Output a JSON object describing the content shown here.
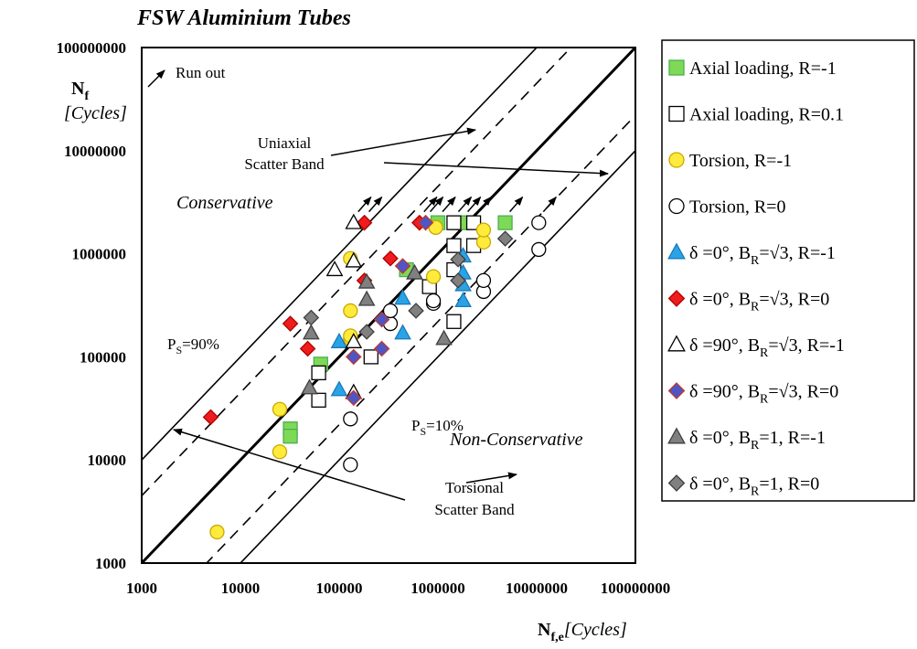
{
  "chart_data": {
    "type": "scatter",
    "title": "FSW Aluminium Tubes",
    "x_scale": "log",
    "y_scale": "log",
    "xlim": [
      1000,
      100000000
    ],
    "ylim": [
      1000,
      100000000
    ],
    "x_ticks": [
      "1000",
      "10000",
      "100000",
      "1000000",
      "10000000",
      "100000000"
    ],
    "y_ticks": [
      "1000",
      "10000",
      "100000",
      "1000000",
      "10000000",
      "100000000"
    ],
    "xlabel": {
      "main": "N",
      "sub": "f,e",
      "unit": "[Cycles]"
    },
    "ylabel": {
      "main": "N",
      "sub": "f",
      "unit": "[Cycles]"
    },
    "grid": false,
    "legend_position": "right",
    "annotations": {
      "run_out": "Run out",
      "uniaxial_band": [
        "Uniaxial",
        "Scatter Band"
      ],
      "torsional_band": [
        "Torsional",
        "Scatter Band"
      ],
      "conservative": "Conservative",
      "non_conservative": "Non-Conservative",
      "ps90": {
        "main": "P",
        "sub": "S",
        "rest": "=90%"
      },
      "ps10": {
        "main": "P",
        "sub": "S",
        "rest": "=10%"
      }
    },
    "series": [
      {
        "name": "Axial loading, R=-1",
        "legend_parts": [
          [
            "Axial loading, R=-1",
            "n"
          ]
        ],
        "marker": "square",
        "fill": "#7ed957",
        "stroke": "#4caf50",
        "points": [
          [
            32000,
            20000
          ],
          [
            32000,
            17000
          ],
          [
            65000,
            85000
          ],
          [
            480000,
            700000
          ],
          [
            1000000,
            2000000
          ],
          [
            1800000,
            2000000
          ],
          [
            4800000,
            2000000
          ]
        ]
      },
      {
        "name": "Axial loading, R=0.1",
        "legend_parts": [
          [
            "Axial loading, R=0.1",
            "n"
          ]
        ],
        "marker": "square",
        "fill": "#ffffff",
        "stroke": "#000000",
        "points": [
          [
            62000,
            38000
          ],
          [
            62000,
            70000
          ],
          [
            210000,
            100000
          ],
          [
            820000,
            480000
          ],
          [
            1450000,
            220000
          ],
          [
            1450000,
            700000
          ],
          [
            1450000,
            1200000
          ],
          [
            1450000,
            2000000
          ],
          [
            2300000,
            1200000
          ],
          [
            2300000,
            2000000
          ]
        ]
      },
      {
        "name": "Torsion, R=-1",
        "legend_parts": [
          [
            "Torsion, R=-1",
            "n"
          ]
        ],
        "marker": "circle",
        "fill": "#ffeb3b",
        "stroke": "#c8a800",
        "points": [
          [
            5800,
            2000
          ],
          [
            25000,
            12000
          ],
          [
            25000,
            31000
          ],
          [
            130000,
            150000
          ],
          [
            130000,
            160000
          ],
          [
            130000,
            280000
          ],
          [
            130000,
            900000
          ],
          [
            900000,
            600000
          ],
          [
            950000,
            1800000
          ],
          [
            2900000,
            1300000
          ],
          [
            2900000,
            1700000
          ]
        ]
      },
      {
        "name": "Torsion, R=0",
        "legend_parts": [
          [
            "Torsion, R=0",
            "n"
          ]
        ],
        "marker": "circle",
        "fill": "#ffffff",
        "stroke": "#000000",
        "points": [
          [
            130000,
            9000
          ],
          [
            130000,
            25000
          ],
          [
            330000,
            210000
          ],
          [
            330000,
            280000
          ],
          [
            900000,
            330000
          ],
          [
            900000,
            350000
          ],
          [
            2900000,
            430000
          ],
          [
            2900000,
            550000
          ],
          [
            10500000,
            1100000
          ],
          [
            10500000,
            2000000
          ]
        ]
      },
      {
        "name": "δ =0°, B_R=√3, R=-1",
        "legend_parts": [
          [
            "δ =0°, B",
            "n"
          ],
          [
            "R",
            "sub"
          ],
          [
            "=√3, R=-1",
            "n"
          ]
        ],
        "marker": "triangle",
        "fill": "#29a3e6",
        "stroke": "#1a7ab8",
        "points": [
          [
            100000,
            140000
          ],
          [
            100000,
            48000
          ],
          [
            440000,
            170000
          ],
          [
            440000,
            370000
          ],
          [
            1800000,
            350000
          ],
          [
            1800000,
            500000
          ],
          [
            1800000,
            650000
          ],
          [
            1800000,
            950000
          ]
        ]
      },
      {
        "name": "δ =0°, B_R=√3, R=0",
        "legend_parts": [
          [
            "δ =0°, B",
            "n"
          ],
          [
            "R",
            "sub"
          ],
          [
            "=√3, R=0",
            "n"
          ]
        ],
        "marker": "diamond",
        "fill": "#ee1c1c",
        "stroke": "#b00000",
        "points": [
          [
            5000,
            26000
          ],
          [
            32000,
            210000
          ],
          [
            48000,
            120000
          ],
          [
            180000,
            2000000
          ],
          [
            180000,
            550000
          ],
          [
            330000,
            900000
          ],
          [
            650000,
            2000000
          ]
        ]
      },
      {
        "name": "δ =90°, B_R=√3, R=-1",
        "legend_parts": [
          [
            "δ =90°, B",
            "n"
          ],
          [
            "R",
            "sub"
          ],
          [
            "=√3, R=-1",
            "n"
          ]
        ],
        "marker": "triangle",
        "fill": "#ffffff",
        "stroke": "#000000",
        "points": [
          [
            90000,
            700000
          ],
          [
            140000,
            2000000
          ],
          [
            140000,
            850000
          ],
          [
            140000,
            140000
          ],
          [
            140000,
            45000
          ]
        ]
      },
      {
        "name": "δ =90°, B_R=√3, R=0",
        "legend_parts": [
          [
            "δ =90°, B",
            "n"
          ],
          [
            "R",
            "sub"
          ],
          [
            "=√3, R=0",
            "n"
          ]
        ],
        "marker": "diamond",
        "fill": "#4f55c4",
        "stroke": "#c0392b",
        "points": [
          [
            140000,
            100000
          ],
          [
            140000,
            40000
          ],
          [
            270000,
            230000
          ],
          [
            270000,
            120000
          ],
          [
            440000,
            760000
          ],
          [
            750000,
            2000000
          ]
        ]
      },
      {
        "name": "δ =0°, B_R=1, R=-1",
        "legend_parts": [
          [
            "δ =0°, B",
            "n"
          ],
          [
            "R",
            "sub"
          ],
          [
            "=1, R=-1",
            "n"
          ]
        ],
        "marker": "triangle",
        "fill": "#808080",
        "stroke": "#3f3f3f",
        "points": [
          [
            50000,
            50000
          ],
          [
            52000,
            170000
          ],
          [
            190000,
            360000
          ],
          [
            190000,
            530000
          ],
          [
            580000,
            650000
          ],
          [
            1150000,
            150000
          ]
        ]
      },
      {
        "name": "δ =0°, B_R=1, R=0",
        "legend_parts": [
          [
            "δ =0°, B",
            "n"
          ],
          [
            "R",
            "sub"
          ],
          [
            "=1, R=0",
            "n"
          ]
        ],
        "marker": "diamond",
        "fill": "#808080",
        "stroke": "#3f3f3f",
        "points": [
          [
            52000,
            240000
          ],
          [
            190000,
            175000
          ],
          [
            600000,
            280000
          ],
          [
            1600000,
            880000
          ],
          [
            1600000,
            550000
          ],
          [
            4800000,
            1400000
          ]
        ]
      }
    ]
  }
}
